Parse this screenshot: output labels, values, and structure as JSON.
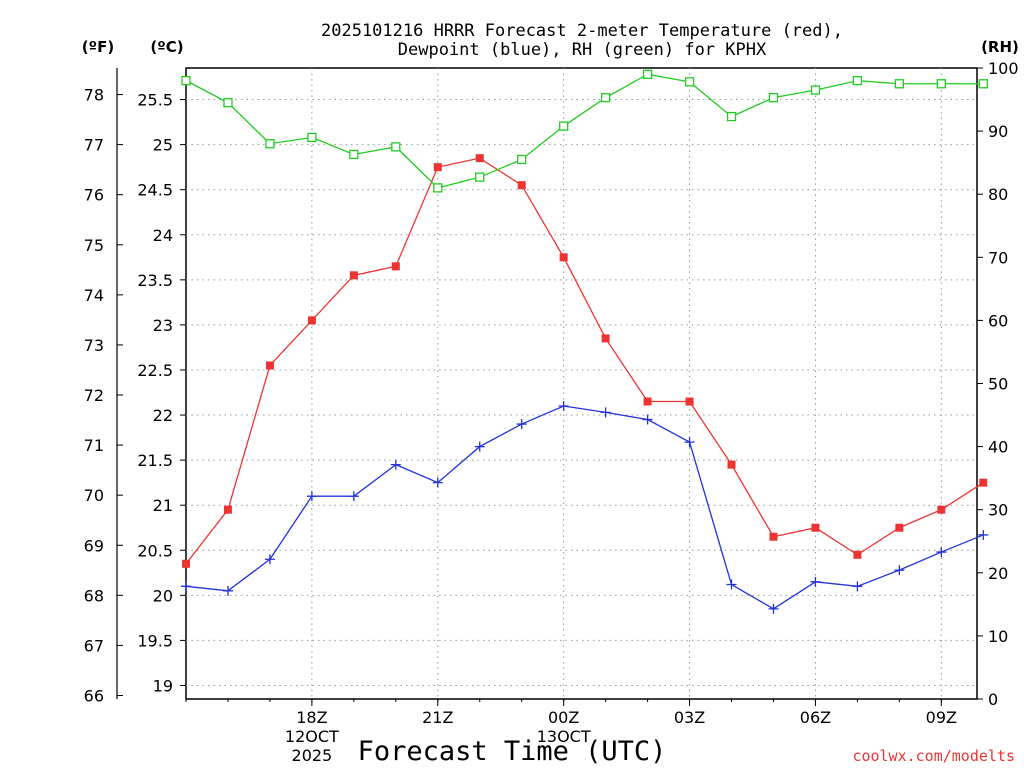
{
  "chart_data": {
    "type": "line",
    "title_line1": "2025101216 HRRR Forecast 2-meter Temperature (red),",
    "title_line2": "Dewpoint (blue), RH (green) for KPHX",
    "xlabel": "Forecast Time (UTC)",
    "credit": "coolwx.com/modelts",
    "left_axis_f_label": "(ºF)",
    "left_axis_c_label": "(ºC)",
    "right_axis_label": "(RH)",
    "x_hours": [
      15,
      16,
      17,
      18,
      19,
      20,
      21,
      22,
      23,
      24,
      25,
      26,
      27,
      28,
      29,
      30,
      31,
      32,
      33,
      34
    ],
    "x_range": [
      15,
      33.85
    ],
    "x_ticks": [
      {
        "hour": 18,
        "label": "18Z",
        "date1": "12OCT",
        "date2": "2025"
      },
      {
        "hour": 21,
        "label": "21Z",
        "date1": "",
        "date2": ""
      },
      {
        "hour": 24,
        "label": "00Z",
        "date1": "13OCT",
        "date2": ""
      },
      {
        "hour": 27,
        "label": "03Z",
        "date1": "",
        "date2": ""
      },
      {
        "hour": 30,
        "label": "06Z",
        "date1": "",
        "date2": ""
      },
      {
        "hour": 33,
        "label": "09Z",
        "date1": "",
        "date2": ""
      }
    ],
    "celsius_range": [
      18.85,
      25.85
    ],
    "celsius_ticks": [
      "19",
      "19.5",
      "20",
      "20.5",
      "21",
      "21.5",
      "22",
      "22.5",
      "23",
      "23.5",
      "24",
      "24.5",
      "25",
      "25.5"
    ],
    "fahrenheit_ticks": [
      "66",
      "67",
      "68",
      "69",
      "70",
      "71",
      "72",
      "73",
      "74",
      "75",
      "76",
      "77",
      "78"
    ],
    "rh_range": [
      0,
      100
    ],
    "rh_ticks": [
      "0",
      "10",
      "20",
      "30",
      "40",
      "50",
      "60",
      "70",
      "80",
      "90",
      "100"
    ],
    "colors": {
      "temperature": "#ee3333",
      "dewpoint": "#2233dd",
      "rh": "#22cc22"
    },
    "series": [
      {
        "name": "Temperature (°C)",
        "axis": "celsius",
        "color": "#ee3333",
        "marker": "filled-square",
        "values": [
          20.35,
          20.95,
          22.55,
          23.05,
          23.55,
          23.65,
          24.75,
          24.85,
          24.55,
          23.75,
          22.85,
          22.15,
          22.15,
          21.45,
          20.65,
          20.75,
          20.45,
          20.75,
          20.95,
          21.25
        ]
      },
      {
        "name": "Dewpoint (°C)",
        "axis": "celsius",
        "color": "#2233dd",
        "marker": "plus",
        "values": [
          20.1,
          20.05,
          20.4,
          21.1,
          21.1,
          21.45,
          21.25,
          21.65,
          21.9,
          22.1,
          22.03,
          21.95,
          21.7,
          20.12,
          19.85,
          20.15,
          20.1,
          20.28,
          20.48,
          20.67
        ]
      },
      {
        "name": "RH (%)",
        "axis": "rh",
        "color": "#22cc22",
        "marker": "open-square",
        "values": [
          98,
          94.5,
          88,
          89,
          86.3,
          87.5,
          81,
          82.7,
          85.5,
          90.8,
          95.3,
          99,
          97.8,
          92.3,
          95.3,
          96.5,
          98,
          97.5,
          97.5,
          97.5
        ]
      }
    ]
  }
}
